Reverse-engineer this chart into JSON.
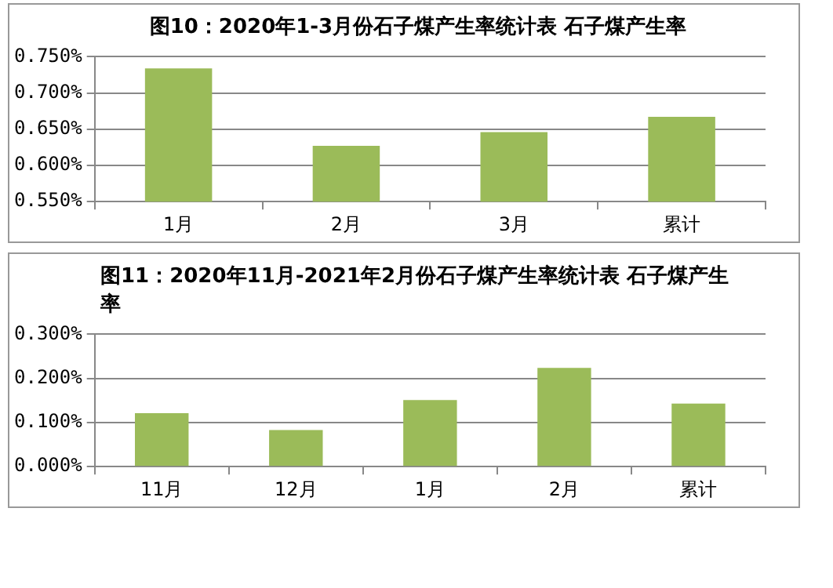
{
  "chart_data": [
    {
      "type": "bar",
      "title": "图10：2020年1-3月份石子煤产生率统计表 石子煤产生率",
      "categories": [
        "1月",
        "2月",
        "3月",
        "累计"
      ],
      "values": [
        0.734,
        0.627,
        0.646,
        0.667
      ],
      "color": "#9bbb59",
      "ylim": [
        0.55,
        0.75
      ],
      "yticks": [
        {
          "value": 0.55,
          "label": "0.550%"
        },
        {
          "value": 0.6,
          "label": "0.600%"
        },
        {
          "value": 0.65,
          "label": "0.650%"
        },
        {
          "value": 0.7,
          "label": "0.700%"
        },
        {
          "value": 0.75,
          "label": "0.750%"
        }
      ],
      "grid": "y",
      "legend": false
    },
    {
      "type": "bar",
      "title": "图11：2020年11月-2021年2月份石子煤产生率统计表 石子煤产生率",
      "categories": [
        "11月",
        "12月",
        "1月",
        "2月",
        "累计"
      ],
      "values": [
        0.121,
        0.083,
        0.151,
        0.224,
        0.143
      ],
      "color": "#9bbb59",
      "ylim": [
        0,
        0.3
      ],
      "yticks": [
        {
          "value": 0,
          "label": "0.000%"
        },
        {
          "value": 0.1,
          "label": "0.100%"
        },
        {
          "value": 0.2,
          "label": "0.200%"
        },
        {
          "value": 0.3,
          "label": "0.300%"
        }
      ],
      "grid": "y",
      "legend": false
    }
  ]
}
